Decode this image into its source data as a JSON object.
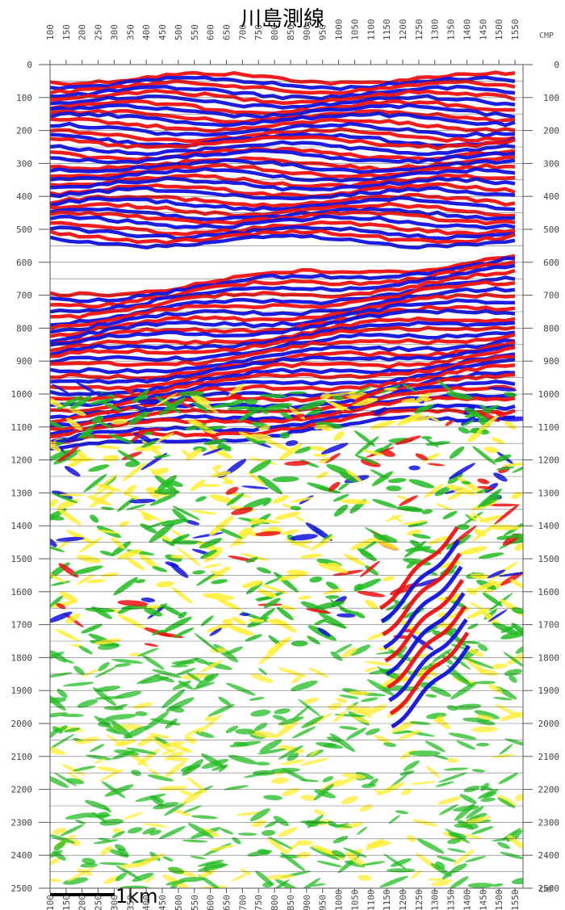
{
  "title": "川島測線",
  "cmp_label": "CMP",
  "scale_bar_label": "1km",
  "colors": {
    "positive": "#ee1111",
    "negative": "#1111dd",
    "weak_positive": "#ffee33",
    "weak_negative": "#22bb22",
    "background": "#ffffff",
    "grid": "#333333"
  },
  "cmp_ticks": [
    "100",
    "150",
    "200",
    "250",
    "300",
    "350",
    "400",
    "450",
    "500",
    "550",
    "600",
    "650",
    "700",
    "750",
    "800",
    "850",
    "900",
    "950",
    "1000",
    "1050",
    "1100",
    "1150",
    "1200",
    "1250",
    "1300",
    "1350",
    "1400",
    "1450",
    "1500",
    "1550"
  ],
  "time_ticks": [
    "0",
    "100",
    "200",
    "300",
    "400",
    "500",
    "600",
    "700",
    "800",
    "900",
    "1000",
    "1100",
    "1200",
    "1300",
    "1400",
    "1500",
    "1600",
    "1700",
    "1800",
    "1900",
    "2000",
    "2100",
    "2200",
    "2300",
    "2400",
    "2500"
  ],
  "cmp_range": [
    100,
    1575
  ],
  "time_range": [
    0,
    2500
  ],
  "gridlines_every": 50
}
